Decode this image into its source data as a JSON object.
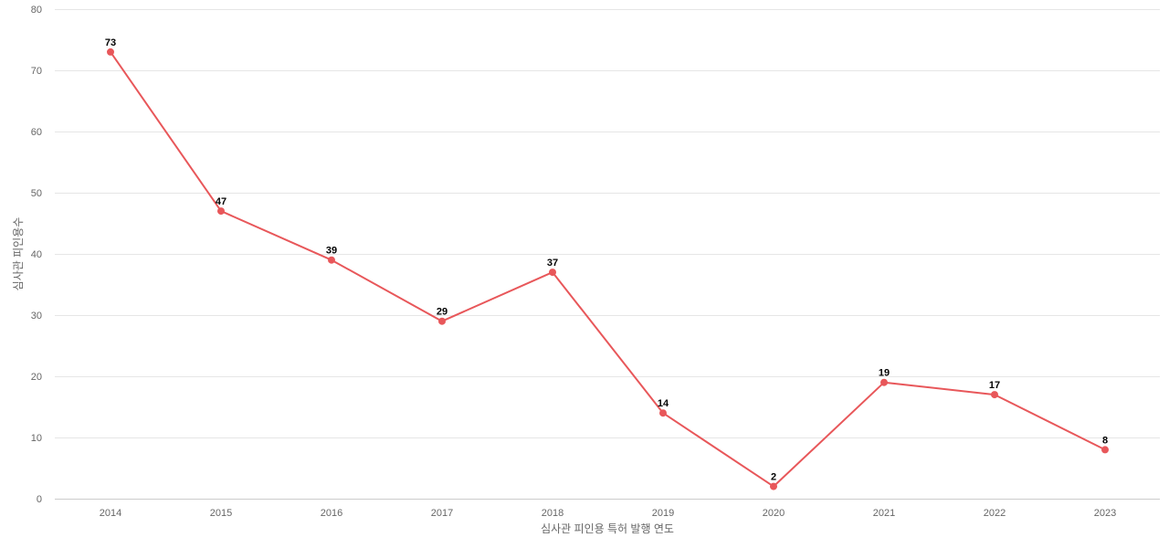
{
  "chart_data": {
    "type": "line",
    "title": "",
    "xlabel": "심사관 피인용 특허 발행 연도",
    "ylabel": "심사관 피인용수",
    "categories": [
      "2014",
      "2015",
      "2016",
      "2017",
      "2018",
      "2019",
      "2020",
      "2021",
      "2022",
      "2023"
    ],
    "series": [
      {
        "values": [
          73,
          47,
          39,
          29,
          37,
          14,
          2,
          19,
          17,
          8
        ]
      }
    ],
    "ylim": [
      0,
      80
    ],
    "yticks": [
      0,
      10,
      20,
      30,
      40,
      50,
      60,
      70,
      80
    ],
    "grid": true,
    "data_labels": true,
    "legend": "none",
    "colors": {
      "line": "#e8575a",
      "grid": "#e6e6e6",
      "axis": "#cccccc",
      "tick_text": "#666666",
      "label_text": "#000000"
    }
  }
}
